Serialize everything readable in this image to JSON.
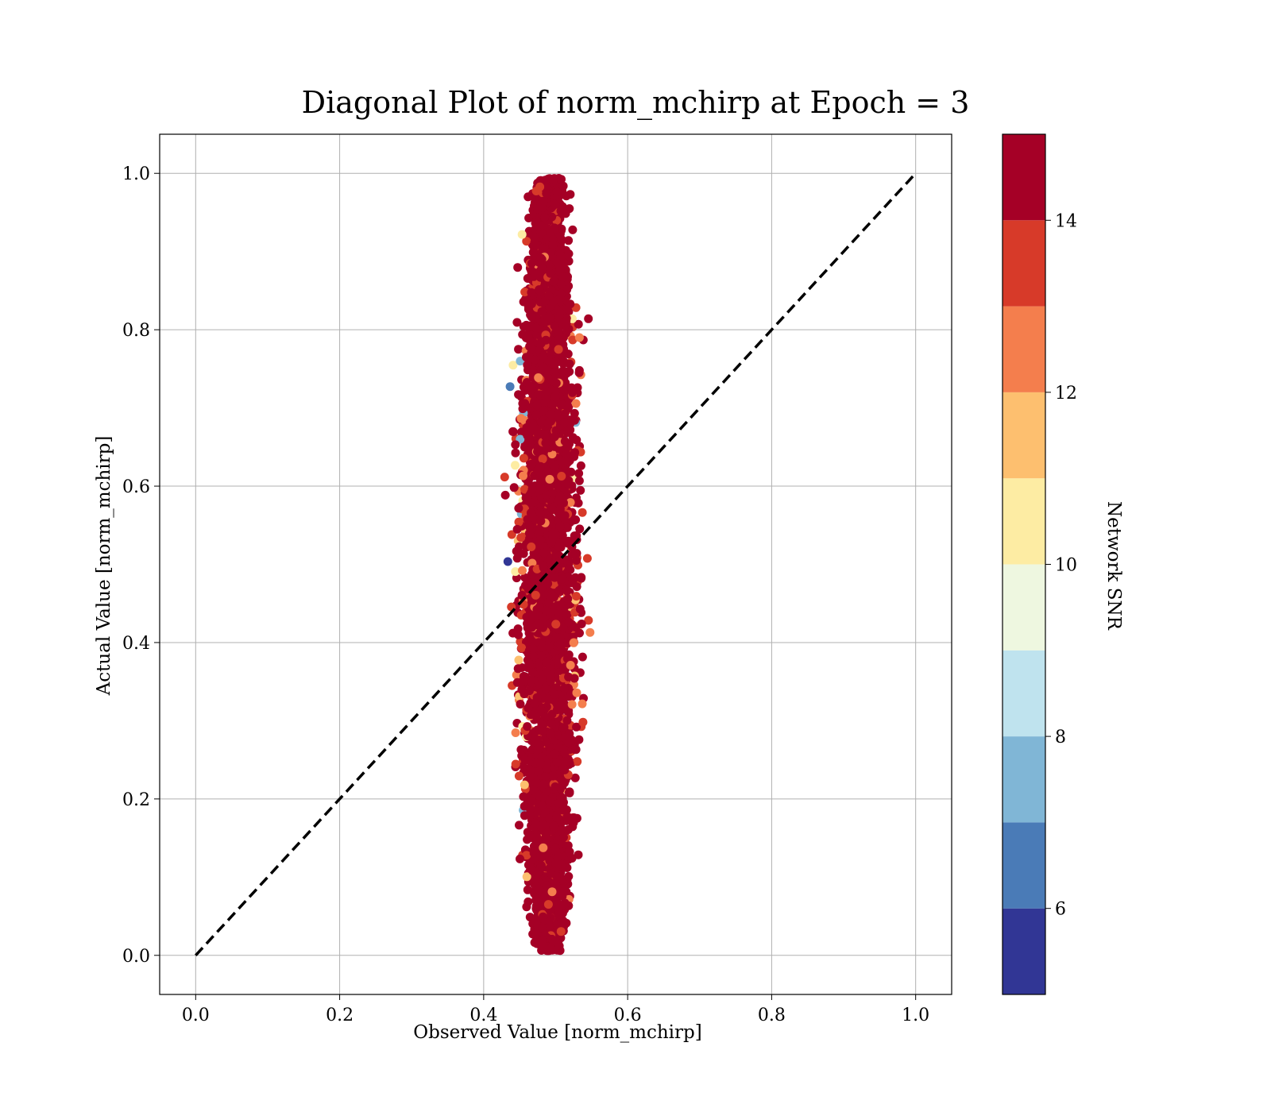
{
  "chart_data": {
    "type": "scatter",
    "title": "Diagonal Plot of norm_mchirp at Epoch = 3",
    "xlabel": "Observed Value [norm_mchirp]",
    "ylabel": "Actual Value [norm_mchirp]",
    "xlim": [
      -0.05,
      1.05
    ],
    "ylim": [
      -0.05,
      1.05
    ],
    "xticks": [
      "0.0",
      "0.2",
      "0.4",
      "0.6",
      "0.8",
      "1.0"
    ],
    "yticks": [
      "0.0",
      "0.2",
      "0.4",
      "0.6",
      "0.8",
      "1.0"
    ],
    "grid": true,
    "reference_line": {
      "style": "dashed",
      "color": "#000000",
      "from": [
        0.0,
        0.0
      ],
      "to": [
        1.0,
        1.0
      ]
    },
    "point_cloud": {
      "x_center": 0.49,
      "x_range_core": [
        0.44,
        0.54
      ],
      "x_range_full": [
        0.4,
        0.59
      ],
      "y_range": [
        0.0,
        1.0
      ],
      "dominant_color": "#a50026"
    },
    "colorbar": {
      "label": "Network SNR",
      "range": [
        5,
        15
      ],
      "ticks": [
        6,
        8,
        10,
        12,
        14
      ],
      "tick_labels": [
        "6",
        "8",
        "10",
        "12",
        "14"
      ],
      "levels": [
        {
          "from": 5,
          "to": 6,
          "color": "#313695"
        },
        {
          "from": 6,
          "to": 7,
          "color": "#4a7bb7"
        },
        {
          "from": 7,
          "to": 8,
          "color": "#80b6d6"
        },
        {
          "from": 8,
          "to": 9,
          "color": "#bfe3ee"
        },
        {
          "from": 9,
          "to": 10,
          "color": "#eef7e0"
        },
        {
          "from": 10,
          "to": 11,
          "color": "#fdeca3"
        },
        {
          "from": 11,
          "to": 12,
          "color": "#fdbf6f"
        },
        {
          "from": 12,
          "to": 13,
          "color": "#f47e4d"
        },
        {
          "from": 13,
          "to": 14,
          "color": "#d73a29"
        },
        {
          "from": 14,
          "to": 15,
          "color": "#a50026"
        }
      ]
    }
  }
}
